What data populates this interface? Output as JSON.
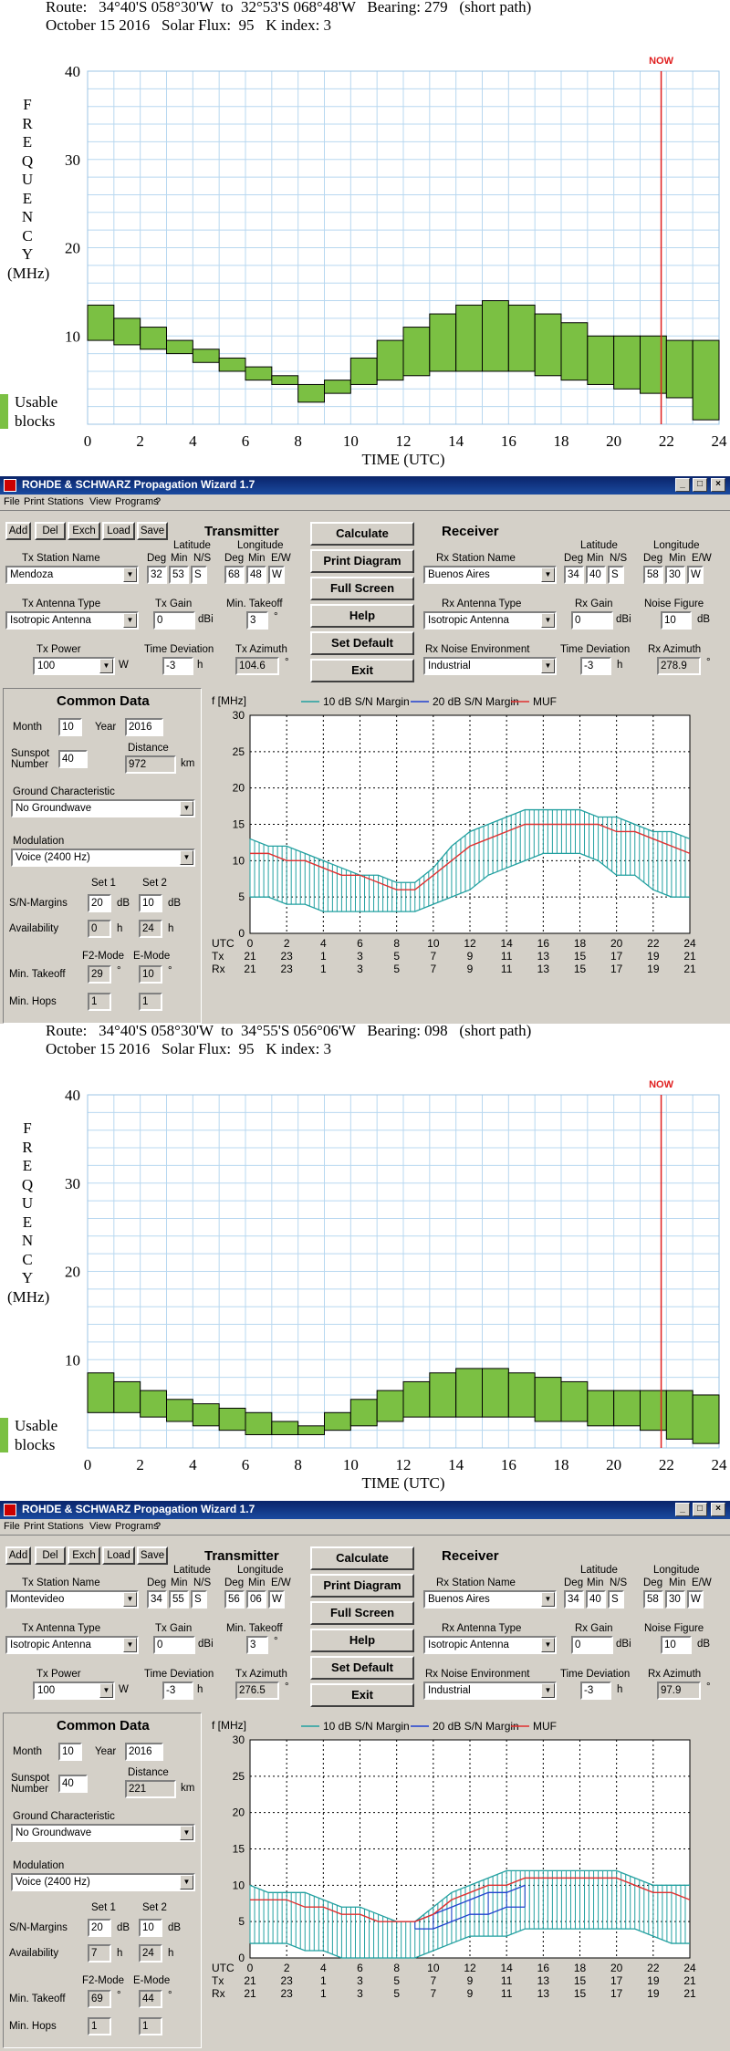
{
  "plots": [
    {
      "route": "Route:   34°40'S 058°30'W  to  32°53'S 068°48'W   Bearing: 279   (short path)",
      "date_line": "October 15 2016   Solar Flux:  95   K index: 3",
      "now_label": "NOW",
      "ylabel_letters": [
        "F",
        "R",
        "E",
        "Q",
        "U",
        "E",
        "N",
        "C",
        "Y"
      ],
      "ylabel_unit": "(MHz)",
      "xlabel": "TIME (UTC)",
      "usable_line1": "Usable",
      "usable_line2": "blocks",
      "chart_data": {
        "type": "bar",
        "x_ticks": [
          0,
          2,
          4,
          6,
          8,
          10,
          12,
          14,
          16,
          18,
          20,
          22,
          24
        ],
        "y_ticks": [
          10,
          20,
          30,
          40
        ],
        "ylim": [
          0,
          40
        ],
        "xlim": [
          0,
          24
        ],
        "now_hour": 21.8,
        "grid": true,
        "bar_color": "#7bc043",
        "low": [
          9.5,
          9,
          8.5,
          8,
          7,
          6,
          5,
          4.5,
          2.5,
          3.5,
          4.5,
          5,
          5.5,
          6,
          6,
          6,
          6,
          5.5,
          5,
          4.5,
          4,
          3.5,
          3,
          0.5
        ],
        "high": [
          13.5,
          12,
          11,
          9.5,
          8.5,
          7.5,
          6.5,
          5.5,
          4.5,
          5,
          7.5,
          9.5,
          11,
          12.5,
          13.5,
          14,
          13.5,
          12.5,
          11.5,
          10,
          10,
          10,
          9.5,
          9.5
        ]
      }
    },
    {
      "route": "Route:   34°40'S 058°30'W  to  34°55'S 056°06'W   Bearing: 098   (short path)",
      "date_line": "October 15 2016   Solar Flux:  95   K index: 3",
      "now_label": "NOW",
      "ylabel_letters": [
        "F",
        "R",
        "E",
        "Q",
        "U",
        "E",
        "N",
        "C",
        "Y"
      ],
      "ylabel_unit": "(MHz)",
      "xlabel": "TIME (UTC)",
      "usable_line1": "Usable",
      "usable_line2": "blocks",
      "chart_data": {
        "type": "bar",
        "x_ticks": [
          0,
          2,
          4,
          6,
          8,
          10,
          12,
          14,
          16,
          18,
          20,
          22,
          24
        ],
        "y_ticks": [
          10,
          20,
          30,
          40
        ],
        "ylim": [
          0,
          40
        ],
        "xlim": [
          0,
          24
        ],
        "now_hour": 21.8,
        "grid": true,
        "bar_color": "#7bc043",
        "low": [
          4,
          4,
          3.5,
          3,
          2.5,
          2,
          1.5,
          1.5,
          1.5,
          2,
          2.5,
          3,
          3.5,
          3.5,
          3.5,
          3.5,
          3.5,
          3,
          3,
          2.5,
          2.5,
          2,
          1,
          0.5
        ],
        "high": [
          8.5,
          7.5,
          6.5,
          5.5,
          5,
          4.5,
          4,
          3,
          2.5,
          4,
          5.5,
          6.5,
          7.5,
          8.5,
          9,
          9,
          8.5,
          8,
          7.5,
          6.5,
          6.5,
          6.5,
          6.5,
          6
        ]
      }
    }
  ],
  "windows": [
    {
      "title": "ROHDE & SCHWARZ     Propagation Wizard  1.7",
      "menu": [
        "File",
        "Print",
        "Stations",
        "View",
        "Programs",
        "?"
      ],
      "toolbar": [
        "Add",
        "Del",
        "Exch",
        "Load",
        "Save"
      ],
      "center_buttons": [
        "Calculate",
        "Print Diagram",
        "Full Screen",
        "Help",
        "Set Default",
        "Exit"
      ],
      "tx": {
        "heading": "Transmitter",
        "station_label": "Tx Station Name",
        "station": "Mendoza",
        "lat_label": "Latitude",
        "lon_label": "Longitude",
        "deg_label": "Deg",
        "min_label": "Min",
        "ns_label": "N/S",
        "ew_label": "E/W",
        "lat_deg": "32",
        "lat_min": "53",
        "lat_ns": "S",
        "lon_deg": "68",
        "lon_min": "48",
        "lon_ew": "W",
        "ant_label": "Tx Antenna Type",
        "ant": "Isotropic Antenna",
        "gain_label": "Tx Gain",
        "gain": "0",
        "gain_unit": "dBi",
        "takeoff_label": "Min. Takeoff",
        "takeoff": "3",
        "deg_sym": "°",
        "power_label": "Tx Power",
        "power": "100",
        "power_unit": "W",
        "timedev_label": "Time Deviation",
        "timedev": "-3",
        "h_unit": "h",
        "az_label": "Tx Azimuth",
        "az": "104.6"
      },
      "rx": {
        "heading": "Receiver",
        "station_label": "Rx Station Name",
        "station": "Buenos Aires",
        "lat_label": "Latitude",
        "lon_label": "Longitude",
        "deg_label": "Deg",
        "min_label": "Min",
        "ns_label": "N/S",
        "ew_label": "E/W",
        "lat_deg": "34",
        "lat_min": "40",
        "lat_ns": "S",
        "lon_deg": "58",
        "lon_min": "30",
        "lon_ew": "W",
        "ant_label": "Rx Antenna Type",
        "ant": "Isotropic Antenna",
        "gain_label": "Rx Gain",
        "gain": "0",
        "gain_unit": "dBi",
        "noise_fig_label": "Noise Figure",
        "noise_fig": "10",
        "noise_unit": "dB",
        "env_label": "Rx Noise Environment",
        "env": "Industrial",
        "timedev_label": "Time Deviation",
        "timedev": "-3",
        "h_unit": "h",
        "az_label": "Rx Azimuth",
        "az": "278.9"
      },
      "common": {
        "heading": "Common Data",
        "month_label": "Month",
        "month": "10",
        "year_label": "Year",
        "year": "2016",
        "sunspot_label1": "Sunspot",
        "sunspot_label2": "Number",
        "sunspot": "40",
        "distance_label": "Distance",
        "distance": "972",
        "km": "km",
        "ground_label": "Ground Characteristic",
        "ground": "No Groundwave",
        "mod_label": "Modulation",
        "mod": "Voice   (2400 Hz)",
        "set1": "Set 1",
        "set2": "Set 2",
        "sn_label": "S/N-Margins",
        "sn1": "20",
        "sn2": "10",
        "db": "dB",
        "avail_label": "Availability",
        "av1": "0",
        "av2": "24",
        "h": "h",
        "f2_label": "F2-Mode",
        "e_label": "E-Mode",
        "takeoff_label": "Min. Takeoff",
        "f2_takeoff": "29",
        "e_takeoff": "10",
        "deg": "°",
        "hops_label": "Min. Hops",
        "f2_hops": "1",
        "e_hops": "1"
      },
      "chart": {
        "ylabel": "f [MHz]",
        "legend": [
          "10 dB S/N Margin",
          "20 dB S/N Margin",
          "MUF"
        ],
        "row_utc": "UTC",
        "row_tx": "Tx",
        "row_rx": "Rx",
        "utc": [
          "0",
          "2",
          "4",
          "6",
          "8",
          "10",
          "12",
          "14",
          "16",
          "18",
          "20",
          "22",
          "24"
        ],
        "tx_times": [
          "21",
          "23",
          "1",
          "3",
          "5",
          "7",
          "9",
          "11",
          "13",
          "15",
          "17",
          "19",
          "21"
        ],
        "rx_times": [
          "21",
          "23",
          "1",
          "3",
          "5",
          "7",
          "9",
          "11",
          "13",
          "15",
          "17",
          "19",
          "21"
        ],
        "chart_data": {
          "type": "line",
          "ylim": [
            0,
            30
          ],
          "xlim": [
            0,
            24
          ],
          "y_ticks": [
            0,
            5,
            10,
            15,
            20,
            25,
            30
          ],
          "colors": {
            "m10": "#22a0a0",
            "m20": "#2040d0",
            "muf": "#e03030"
          },
          "x": [
            0,
            1,
            2,
            3,
            4,
            5,
            6,
            7,
            8,
            9,
            10,
            11,
            12,
            13,
            14,
            15,
            16,
            17,
            18,
            19,
            20,
            21,
            22,
            23,
            24
          ],
          "m10_upper": [
            13,
            12,
            12,
            11,
            10,
            9,
            8,
            8,
            7,
            7,
            9,
            12,
            14,
            15,
            16,
            17,
            17,
            17,
            17,
            16,
            16,
            15,
            14,
            14,
            13
          ],
          "m10_lower": [
            5,
            5,
            4,
            4,
            3,
            3,
            3,
            3,
            3,
            3,
            4,
            5,
            6,
            8,
            9,
            10,
            11,
            11,
            11,
            10,
            8,
            8,
            6,
            5,
            5
          ],
          "muf": [
            11,
            11,
            10,
            10,
            9,
            8,
            8,
            7,
            6,
            6,
            8,
            10,
            12,
            13,
            14,
            15,
            15,
            15,
            15,
            15,
            14,
            14,
            13,
            12,
            11
          ]
        }
      }
    },
    {
      "title": "ROHDE & SCHWARZ     Propagation Wizard  1.7",
      "menu": [
        "File",
        "Print",
        "Stations",
        "View",
        "Programs",
        "?"
      ],
      "toolbar": [
        "Add",
        "Del",
        "Exch",
        "Load",
        "Save"
      ],
      "center_buttons": [
        "Calculate",
        "Print Diagram",
        "Full Screen",
        "Help",
        "Set Default",
        "Exit"
      ],
      "tx": {
        "heading": "Transmitter",
        "station_label": "Tx Station Name",
        "station": "Montevideo",
        "lat_label": "Latitude",
        "lon_label": "Longitude",
        "deg_label": "Deg",
        "min_label": "Min",
        "ns_label": "N/S",
        "ew_label": "E/W",
        "lat_deg": "34",
        "lat_min": "55",
        "lat_ns": "S",
        "lon_deg": "56",
        "lon_min": "06",
        "lon_ew": "W",
        "ant_label": "Tx Antenna Type",
        "ant": "Isotropic Antenna",
        "gain_label": "Tx Gain",
        "gain": "0",
        "gain_unit": "dBi",
        "takeoff_label": "Min. Takeoff",
        "takeoff": "3",
        "deg_sym": "°",
        "power_label": "Tx Power",
        "power": "100",
        "power_unit": "W",
        "timedev_label": "Time Deviation",
        "timedev": "-3",
        "h_unit": "h",
        "az_label": "Tx Azimuth",
        "az": "276.5"
      },
      "rx": {
        "heading": "Receiver",
        "station_label": "Rx Station Name",
        "station": "Buenos Aires",
        "lat_label": "Latitude",
        "lon_label": "Longitude",
        "deg_label": "Deg",
        "min_label": "Min",
        "ns_label": "N/S",
        "ew_label": "E/W",
        "lat_deg": "34",
        "lat_min": "40",
        "lat_ns": "S",
        "lon_deg": "58",
        "lon_min": "30",
        "lon_ew": "W",
        "ant_label": "Rx Antenna Type",
        "ant": "Isotropic Antenna",
        "gain_label": "Rx Gain",
        "gain": "0",
        "gain_unit": "dBi",
        "noise_fig_label": "Noise Figure",
        "noise_fig": "10",
        "noise_unit": "dB",
        "env_label": "Rx Noise Environment",
        "env": "Industrial",
        "timedev_label": "Time Deviation",
        "timedev": "-3",
        "h_unit": "h",
        "az_label": "Rx Azimuth",
        "az": "97.9"
      },
      "common": {
        "heading": "Common Data",
        "month_label": "Month",
        "month": "10",
        "year_label": "Year",
        "year": "2016",
        "sunspot_label1": "Sunspot",
        "sunspot_label2": "Number",
        "sunspot": "40",
        "distance_label": "Distance",
        "distance": "221",
        "km": "km",
        "ground_label": "Ground Characteristic",
        "ground": "No Groundwave",
        "mod_label": "Modulation",
        "mod": "Voice   (2400 Hz)",
        "set1": "Set 1",
        "set2": "Set 2",
        "sn_label": "S/N-Margins",
        "sn1": "20",
        "sn2": "10",
        "db": "dB",
        "avail_label": "Availability",
        "av1": "7",
        "av2": "24",
        "h": "h",
        "f2_label": "F2-Mode",
        "e_label": "E-Mode",
        "takeoff_label": "Min. Takeoff",
        "f2_takeoff": "69",
        "e_takeoff": "44",
        "deg": "°",
        "hops_label": "Min. Hops",
        "f2_hops": "1",
        "e_hops": "1"
      },
      "chart": {
        "ylabel": "f [MHz]",
        "legend": [
          "10 dB S/N Margin",
          "20 dB S/N Margin",
          "MUF"
        ],
        "row_utc": "UTC",
        "row_tx": "Tx",
        "row_rx": "Rx",
        "utc": [
          "0",
          "2",
          "4",
          "6",
          "8",
          "10",
          "12",
          "14",
          "16",
          "18",
          "20",
          "22",
          "24"
        ],
        "tx_times": [
          "21",
          "23",
          "1",
          "3",
          "5",
          "7",
          "9",
          "11",
          "13",
          "15",
          "17",
          "19",
          "21"
        ],
        "rx_times": [
          "21",
          "23",
          "1",
          "3",
          "5",
          "7",
          "9",
          "11",
          "13",
          "15",
          "17",
          "19",
          "21"
        ],
        "chart_data": {
          "type": "line",
          "ylim": [
            0,
            30
          ],
          "xlim": [
            0,
            24
          ],
          "y_ticks": [
            0,
            5,
            10,
            15,
            20,
            25,
            30
          ],
          "colors": {
            "m10": "#22a0a0",
            "m20": "#2040d0",
            "muf": "#e03030"
          },
          "x": [
            0,
            1,
            2,
            3,
            4,
            5,
            6,
            7,
            8,
            9,
            10,
            11,
            12,
            13,
            14,
            15,
            16,
            17,
            18,
            19,
            20,
            21,
            22,
            23,
            24
          ],
          "m10_upper": [
            10,
            9,
            9,
            9,
            8,
            7,
            7,
            6,
            5,
            5,
            7,
            9,
            10,
            11,
            12,
            12,
            12,
            12,
            12,
            12,
            12,
            11,
            10,
            10,
            10
          ],
          "m10_lower": [
            2,
            2,
            2,
            1,
            1,
            0,
            0,
            0,
            0,
            0,
            1,
            2,
            3,
            3,
            3,
            4,
            4,
            4,
            4,
            4,
            4,
            4,
            3,
            2,
            2
          ],
          "muf": [
            8,
            8,
            8,
            7,
            7,
            6,
            6,
            5,
            5,
            5,
            6,
            8,
            9,
            10,
            10,
            11,
            11,
            11,
            11,
            11,
            11,
            10,
            9,
            9,
            8
          ],
          "m20_x": [
            9,
            10,
            11,
            12,
            13,
            14,
            15
          ],
          "m20_upper": [
            5,
            6,
            7,
            8,
            9,
            9,
            10
          ],
          "m20_lower": [
            4,
            4,
            5,
            6,
            6,
            7,
            7
          ]
        }
      }
    }
  ]
}
